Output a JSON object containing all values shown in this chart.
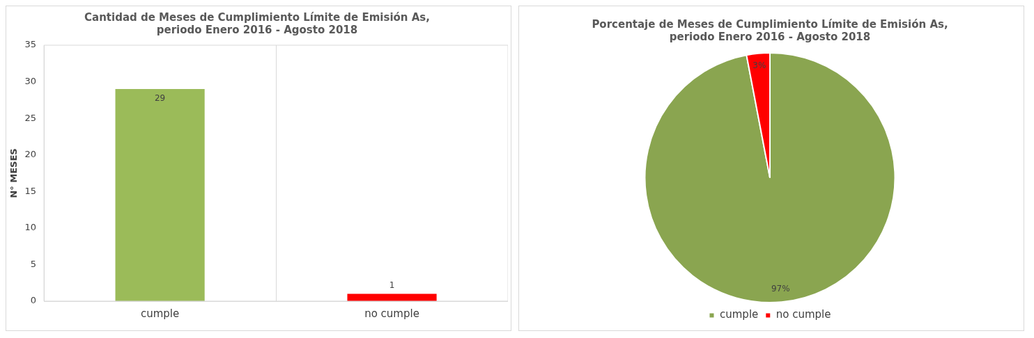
{
  "chart_data": [
    {
      "type": "bar",
      "title": "Cantidad de Meses de Cumplimiento Límite de Emisión As, periodo Enero 2016 - Agosto 2018",
      "ylabel": "N° MESES",
      "categories": [
        "cumple",
        "no cumple"
      ],
      "values": [
        29,
        1
      ],
      "colors": [
        "#9bbb59",
        "#ff0000"
      ],
      "ylim": [
        0,
        35
      ],
      "yticks": [
        0,
        5,
        10,
        15,
        20,
        25,
        30,
        35
      ],
      "grid": "x",
      "data_labels": true,
      "legend": false
    },
    {
      "type": "pie",
      "title": "Porcentaje de Meses de Cumplimiento Límite de Emisión As, periodo Enero 2016 - Agosto 2018",
      "categories": [
        "cumple",
        "no cumple"
      ],
      "values": [
        97,
        3
      ],
      "colors": [
        "#8aa550",
        "#ff0000"
      ],
      "value_labels": [
        "97%",
        "3%"
      ],
      "legend": "bottom"
    }
  ]
}
